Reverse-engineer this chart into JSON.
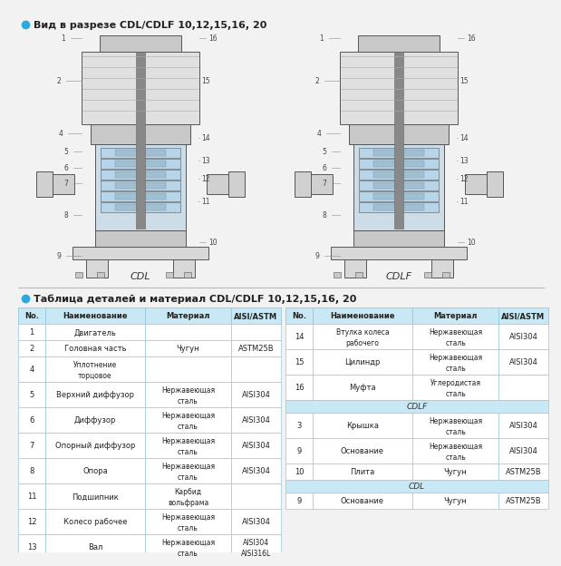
{
  "bg_color": "#f2f2f2",
  "header1_text": "Вид в разрезе CDL/CDLF 10,12,15,16, 20",
  "header2_text": "Таблица деталей и материал CDL/CDLF 10,12,15,16, 20",
  "bullet_color": "#29abe2",
  "table_header_bg": "#c8e8f5",
  "table_row_bg": "#ffffff",
  "table_alt_bg": "#eaf6fc",
  "table_border": "#9ac8dc",
  "section_bg": "#d8eef8",
  "left_table_headers": [
    "No.",
    "Наименование",
    "Материал",
    "AISI/ASTM"
  ],
  "right_table_headers": [
    "No.",
    "Наименование",
    "Материал",
    "AISI/ASTM"
  ],
  "left_rows": [
    [
      "1",
      "Двигатель",
      "",
      ""
    ],
    [
      "2",
      "Головная часть",
      "Чугун",
      "ASTM25B"
    ],
    [
      "4",
      "Уплотнение\nторцовое",
      "",
      ""
    ],
    [
      "5",
      "Верхний диффузор",
      "Нержавеющая\nсталь",
      "AISI304"
    ],
    [
      "6",
      "Диффузор",
      "Нержавеющая\nсталь",
      "AISI304"
    ],
    [
      "7",
      "Опорный диффузор",
      "Нержавеющая\nсталь",
      "AISI304"
    ],
    [
      "8",
      "Опора",
      "Нержавеющая\nсталь",
      "AISI304"
    ],
    [
      "11",
      "Подшипник",
      "Карбид\nвольфрама",
      ""
    ],
    [
      "12",
      "Колесо рабочее",
      "Нержавеющая\nсталь",
      "AISI304"
    ],
    [
      "13",
      "Вал",
      "Нержавеющая\nсталь",
      "AISI304\nAISI316L"
    ]
  ],
  "right_rows": [
    [
      "14",
      "Втулка колеса\nрабочего",
      "Нержавеющая\nсталь",
      "AISI304"
    ],
    [
      "15",
      "Цилиндр",
      "Нержавеющая\nсталь",
      "AISI304"
    ],
    [
      "16",
      "Муфта",
      "Углеродистая\nсталь",
      ""
    ],
    [
      "CDLF",
      "",
      "",
      ""
    ],
    [
      "3",
      "Крышка",
      "Нержавеющая\nсталь",
      "AISI304"
    ],
    [
      "9",
      "Основание",
      "Нержавеющая\nсталь",
      "AISI304"
    ],
    [
      "10",
      "Плита",
      "Чугун",
      "ASTM25B"
    ],
    [
      "CDL",
      "",
      "",
      ""
    ],
    [
      "9",
      "Основание",
      "Чугун",
      "ASTM25B"
    ]
  ],
  "cdl_label": "CDL",
  "cdlf_label": "CDLF"
}
